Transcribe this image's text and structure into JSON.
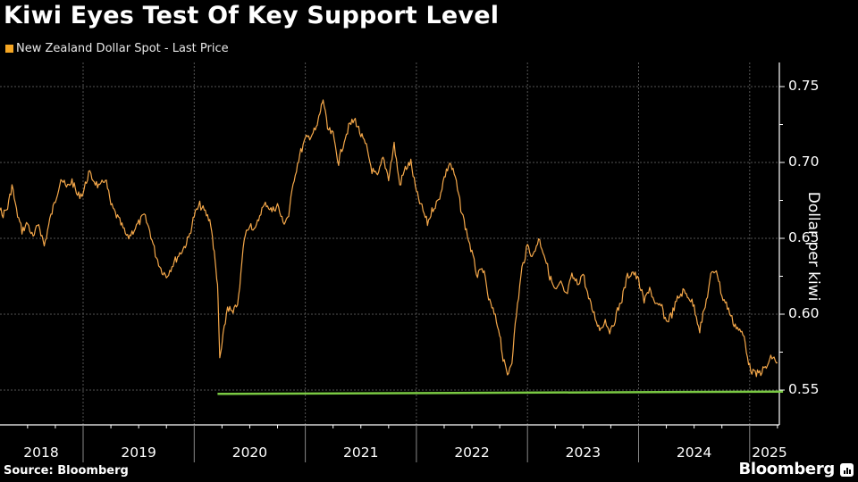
{
  "header": {
    "title": "Kiwi Eyes Test Of Key Support Level",
    "legend": [
      {
        "label": "New Zealand Dollar Spot - Last Price",
        "color": "#f5a623"
      }
    ]
  },
  "footer": {
    "source": "Source: Bloomberg",
    "brand": "Bloomberg"
  },
  "colors": {
    "background": "#000000",
    "series": "#f5a84a",
    "support_line": "#7ac943",
    "grid": "#555555",
    "axis": "#ffffff"
  },
  "chart_data": {
    "type": "line",
    "title": "Kiwi Eyes Test Of Key Support Level",
    "xlabel": "",
    "ylabel": "Dollar per kiwi",
    "ylim": [
      0.525,
      0.77
    ],
    "yticks": [
      0.55,
      0.6,
      0.65,
      0.7,
      0.75
    ],
    "ytick_labels": [
      "0.55",
      "0.60",
      "0.65",
      "0.70",
      "0.75"
    ],
    "xticks": [
      "2018",
      "2019",
      "2020",
      "2021",
      "2022",
      "2023",
      "2024",
      "2025"
    ],
    "grid": true,
    "legend_position": "top-left",
    "series": [
      {
        "name": "New Zealand Dollar Spot - Last Price",
        "color": "#f5a84a",
        "x": [
          2018.02,
          2018.06,
          2018.1,
          2018.14,
          2018.18,
          2018.22,
          2018.27,
          2018.32,
          2018.36,
          2018.4,
          2018.45,
          2018.5,
          2018.55,
          2018.6,
          2018.65,
          2018.7,
          2018.75,
          2018.8,
          2018.85,
          2018.9,
          2018.95,
          2019.0,
          2019.05,
          2019.1,
          2019.15,
          2019.2,
          2019.25,
          2019.3,
          2019.35,
          2019.4,
          2019.45,
          2019.5,
          2019.55,
          2019.6,
          2019.65,
          2019.7,
          2019.75,
          2019.8,
          2019.85,
          2019.9,
          2019.95,
          2020.0,
          2020.05,
          2020.1,
          2020.15,
          2020.18,
          2020.21,
          2020.23,
          2020.26,
          2020.3,
          2020.35,
          2020.4,
          2020.45,
          2020.5,
          2020.55,
          2020.6,
          2020.65,
          2020.7,
          2020.75,
          2020.8,
          2020.85,
          2020.9,
          2020.95,
          2021.0,
          2021.05,
          2021.1,
          2021.13,
          2021.16,
          2021.2,
          2021.25,
          2021.3,
          2021.35,
          2021.4,
          2021.45,
          2021.5,
          2021.55,
          2021.6,
          2021.65,
          2021.7,
          2021.75,
          2021.8,
          2021.85,
          2021.9,
          2021.95,
          2022.0,
          2022.05,
          2022.1,
          2022.15,
          2022.2,
          2022.25,
          2022.3,
          2022.35,
          2022.4,
          2022.45,
          2022.5,
          2022.55,
          2022.6,
          2022.65,
          2022.7,
          2022.75,
          2022.78,
          2022.82,
          2022.86,
          2022.9,
          2022.95,
          2023.0,
          2023.05,
          2023.1,
          2023.15,
          2023.2,
          2023.25,
          2023.3,
          2023.35,
          2023.4,
          2023.45,
          2023.5,
          2023.55,
          2023.6,
          2023.65,
          2023.7,
          2023.75,
          2023.8,
          2023.85,
          2023.9,
          2023.95,
          2024.0,
          2024.05,
          2024.1,
          2024.15,
          2024.2,
          2024.25,
          2024.3,
          2024.35,
          2024.4,
          2024.45,
          2024.5,
          2024.55,
          2024.6,
          2024.65,
          2024.7,
          2024.75,
          2024.8,
          2024.85,
          2024.9,
          2024.95,
          2025.0,
          2025.05,
          2025.1,
          2025.15,
          2025.2,
          2025.25
        ],
        "y": [
          0.725,
          0.737,
          0.712,
          0.7,
          0.695,
          0.68,
          0.665,
          0.67,
          0.685,
          0.668,
          0.655,
          0.66,
          0.65,
          0.66,
          0.645,
          0.662,
          0.675,
          0.69,
          0.683,
          0.688,
          0.678,
          0.68,
          0.693,
          0.688,
          0.683,
          0.69,
          0.672,
          0.665,
          0.658,
          0.65,
          0.655,
          0.66,
          0.665,
          0.655,
          0.64,
          0.63,
          0.625,
          0.632,
          0.638,
          0.643,
          0.65,
          0.665,
          0.672,
          0.667,
          0.66,
          0.64,
          0.62,
          0.57,
          0.585,
          0.605,
          0.6,
          0.61,
          0.65,
          0.66,
          0.655,
          0.668,
          0.673,
          0.668,
          0.672,
          0.66,
          0.665,
          0.69,
          0.705,
          0.715,
          0.718,
          0.722,
          0.732,
          0.742,
          0.722,
          0.718,
          0.7,
          0.715,
          0.725,
          0.728,
          0.718,
          0.71,
          0.695,
          0.69,
          0.703,
          0.69,
          0.712,
          0.685,
          0.696,
          0.7,
          0.68,
          0.67,
          0.66,
          0.67,
          0.675,
          0.69,
          0.7,
          0.69,
          0.67,
          0.655,
          0.64,
          0.625,
          0.63,
          0.61,
          0.6,
          0.588,
          0.57,
          0.56,
          0.57,
          0.6,
          0.63,
          0.645,
          0.638,
          0.65,
          0.64,
          0.625,
          0.615,
          0.62,
          0.612,
          0.625,
          0.62,
          0.627,
          0.61,
          0.6,
          0.59,
          0.596,
          0.588,
          0.6,
          0.61,
          0.625,
          0.628,
          0.622,
          0.608,
          0.618,
          0.605,
          0.606,
          0.595,
          0.6,
          0.61,
          0.615,
          0.612,
          0.605,
          0.59,
          0.605,
          0.625,
          0.63,
          0.612,
          0.605,
          0.595,
          0.59,
          0.585,
          0.565,
          0.56,
          0.562,
          0.565,
          0.572,
          0.568
        ]
      },
      {
        "name": "Support level",
        "color": "#7ac943",
        "x": [
          2020.21,
          2025.3
        ],
        "y": [
          0.5475,
          0.549
        ]
      }
    ]
  }
}
